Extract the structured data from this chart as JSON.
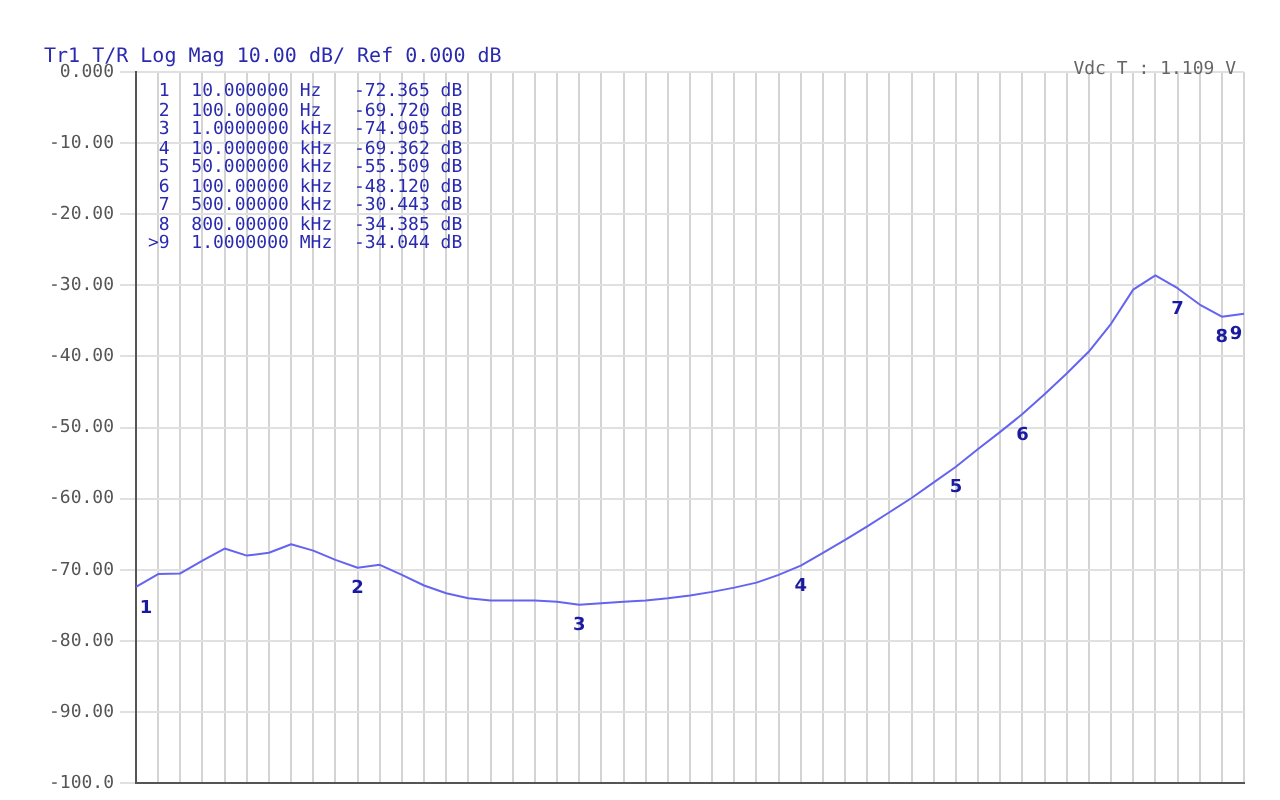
{
  "chart_data": {
    "type": "line",
    "title": "Tr1 T/R Log Mag 10.00 dB/ Ref 0.000 dB",
    "subtitle": "Vdc T : 1.109 V",
    "categories": [
      null,
      null,
      null,
      null,
      null,
      null,
      null,
      null,
      null,
      null,
      null,
      null,
      null,
      null,
      null,
      null,
      null,
      null,
      null,
      null,
      null,
      null,
      null,
      null,
      null,
      null,
      null,
      null,
      null,
      null,
      null,
      null,
      null,
      null,
      null,
      null,
      null,
      null,
      null,
      null,
      null,
      null,
      null,
      null,
      null,
      null,
      null,
      null,
      null,
      null,
      null
    ],
    "series": [
      {
        "color": "#6464f0",
        "values": [
          -72.4,
          -70.6,
          -70.5,
          -68.7,
          -67.0,
          -68.0,
          -67.6,
          -66.4,
          -67.3,
          -68.6,
          -69.7,
          -69.3,
          -70.7,
          -72.2,
          -73.3,
          -74.0,
          -74.3,
          -74.3,
          -74.3,
          -74.5,
          -74.9,
          -74.7,
          -74.5,
          -74.3,
          -74.0,
          -73.6,
          -73.1,
          -72.5,
          -71.8,
          -70.7,
          -69.4,
          -67.6,
          -65.8,
          -63.9,
          -61.9,
          -59.9,
          -57.7,
          -55.5,
          -53.0,
          -50.6,
          -48.1,
          -45.3,
          -42.4,
          -39.3,
          -35.4,
          -30.6,
          -28.6,
          -30.4,
          -32.7,
          -34.4,
          -34.0
        ]
      }
    ],
    "ylim": [
      -100,
      0
    ],
    "yticks": [
      {
        "value": 0,
        "label": "0.000"
      },
      {
        "value": -10,
        "label": "-10.00"
      },
      {
        "value": -20,
        "label": "-20.00"
      },
      {
        "value": -30,
        "label": "-30.00"
      },
      {
        "value": -40,
        "label": "-40.00"
      },
      {
        "value": -50,
        "label": "-50.00"
      },
      {
        "value": -60,
        "label": "-60.00"
      },
      {
        "value": -70,
        "label": "-70.00"
      },
      {
        "value": -80,
        "label": "-80.00"
      },
      {
        "value": -90,
        "label": "-90.00"
      },
      {
        "value": -100,
        "label": "-100.0"
      }
    ],
    "tick_labels": "y",
    "grid": true,
    "legend": false,
    "marker": "none",
    "annotations": [
      {
        "text": "1",
        "y": -72.4
      },
      {
        "text": "2",
        "y": -69.7
      },
      {
        "text": "3",
        "y": -74.9
      },
      {
        "text": "4",
        "y": -69.4
      },
      {
        "text": "5",
        "y": -55.5
      },
      {
        "text": "6",
        "y": -48.1
      },
      {
        "text": "7",
        "y": -30.4
      },
      {
        "text": "8",
        "y": -34.4
      },
      {
        "text": "9",
        "y": -34.0
      },
      " 1  10.000000 Hz   -72.365 dB",
      " 2  100.00000 Hz   -69.720 dB",
      " 3  1.0000000 kHz  -74.905 dB",
      " 4  10.000000 kHz  -69.362 dB",
      " 5  50.000000 kHz  -55.509 dB",
      " 6  100.00000 kHz  -48.120 dB",
      " 7  500.00000 kHz  -30.443 dB",
      " 8  800.00000 kHz  -34.385 dB",
      ">9  1.0000000 MHz  -34.044 dB"
    ]
  }
}
